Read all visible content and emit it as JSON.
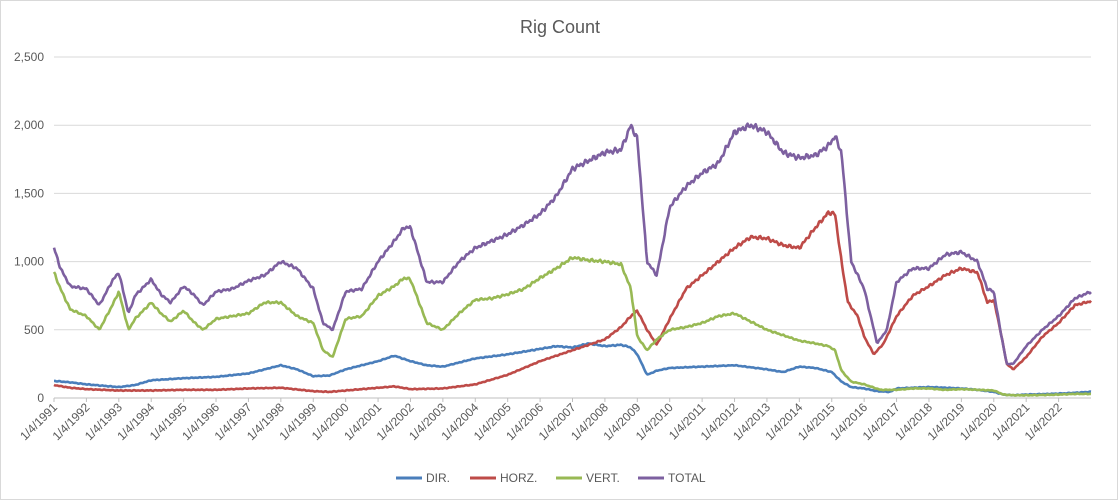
{
  "chart_data": {
    "type": "line",
    "title": "Rig Count",
    "xlabel": "",
    "ylabel": "",
    "ylim": [
      0,
      2500
    ],
    "yticks": [
      "0",
      "500",
      "1,000",
      "1,500",
      "2,000",
      "2,500"
    ],
    "xlim": [
      "1991-01-04",
      "2023-01-04"
    ],
    "xticks": [
      "1/4/1991",
      "1/4/1992",
      "1/4/1993",
      "1/4/1994",
      "1/4/1995",
      "1/4/1996",
      "1/4/1997",
      "1/4/1998",
      "1/4/1999",
      "1/4/2000",
      "1/4/2001",
      "1/4/2002",
      "1/4/2003",
      "1/4/2004",
      "1/4/2005",
      "1/4/2006",
      "1/4/2007",
      "1/4/2008",
      "1/4/2009",
      "1/4/2010",
      "1/4/2011",
      "1/4/2012",
      "1/4/2013",
      "1/4/2014",
      "1/4/2015",
      "1/4/2016",
      "1/4/2017",
      "1/4/2018",
      "1/4/2019",
      "1/4/2020",
      "1/4/2021",
      "1/4/2022"
    ],
    "grid": "horizontal",
    "legend_position": "bottom",
    "series": [
      {
        "name": "DIR.",
        "color": "#4a7ebb",
        "x": [
          1991.0,
          1991.5,
          1992.0,
          1992.5,
          1993.0,
          1993.5,
          1994.0,
          1995.0,
          1996.0,
          1997.0,
          1997.5,
          1998.0,
          1998.5,
          1999.0,
          1999.5,
          2000.0,
          2001.0,
          2001.5,
          2002.0,
          2002.5,
          2003.0,
          2003.5,
          2004.0,
          2005.0,
          2006.0,
          2006.5,
          2007.0,
          2007.5,
          2008.0,
          2008.5,
          2008.8,
          2009.0,
          2009.3,
          2009.6,
          2010.0,
          2011.0,
          2012.0,
          2012.5,
          2013.0,
          2013.5,
          2014.0,
          2014.5,
          2015.0,
          2015.3,
          2015.6,
          2016.0,
          2016.4,
          2016.8,
          2017.0,
          2017.5,
          2018.0,
          2018.5,
          2019.0,
          2019.5,
          2020.0,
          2020.3,
          2020.6,
          2021.0,
          2021.5,
          2022.0,
          2022.5,
          2023.0
        ],
        "values": [
          125,
          115,
          100,
          90,
          80,
          95,
          130,
          145,
          155,
          180,
          210,
          240,
          210,
          160,
          165,
          210,
          270,
          310,
          270,
          240,
          230,
          260,
          290,
          320,
          360,
          380,
          370,
          400,
          380,
          390,
          370,
          320,
          170,
          200,
          220,
          230,
          240,
          225,
          210,
          190,
          230,
          220,
          190,
          120,
          80,
          70,
          50,
          45,
          70,
          75,
          80,
          75,
          70,
          60,
          45,
          25,
          20,
          25,
          28,
          32,
          38,
          45
        ]
      },
      {
        "name": "HORZ.",
        "color": "#be4b48",
        "x": [
          1991.0,
          1991.5,
          1992.0,
          1993.0,
          1994.0,
          1995.0,
          1996.0,
          1997.0,
          1998.0,
          1999.0,
          1999.5,
          2000.0,
          2001.0,
          2001.5,
          2002.0,
          2003.0,
          2004.0,
          2005.0,
          2006.0,
          2007.0,
          2008.0,
          2008.5,
          2008.8,
          2009.0,
          2009.3,
          2009.6,
          2010.0,
          2010.5,
          2011.0,
          2011.5,
          2012.0,
          2012.5,
          2013.0,
          2013.5,
          2014.0,
          2014.5,
          2014.9,
          2015.1,
          2015.3,
          2015.5,
          2015.8,
          2016.0,
          2016.3,
          2016.6,
          2017.0,
          2017.5,
          2018.0,
          2018.5,
          2019.0,
          2019.5,
          2019.8,
          2020.0,
          2020.2,
          2020.4,
          2020.6,
          2021.0,
          2021.5,
          2022.0,
          2022.5,
          2023.0
        ],
        "values": [
          95,
          75,
          65,
          55,
          55,
          60,
          60,
          70,
          75,
          50,
          45,
          55,
          75,
          85,
          65,
          70,
          100,
          170,
          270,
          350,
          430,
          520,
          600,
          640,
          500,
          390,
          580,
          800,
          900,
          1000,
          1100,
          1180,
          1170,
          1120,
          1100,
          1250,
          1360,
          1350,
          1000,
          700,
          600,
          450,
          320,
          400,
          600,
          750,
          820,
          900,
          950,
          920,
          700,
          720,
          500,
          250,
          210,
          300,
          450,
          550,
          680,
          710
        ]
      },
      {
        "name": "VERT.",
        "color": "#98b954",
        "x": [
          1991.0,
          1991.2,
          1991.5,
          1992.0,
          1992.4,
          1992.8,
          1993.0,
          1993.3,
          1993.5,
          1994.0,
          1994.3,
          1994.6,
          1995.0,
          1995.3,
          1995.6,
          1996.0,
          1996.5,
          1997.0,
          1997.5,
          1998.0,
          1998.5,
          1999.0,
          1999.3,
          1999.6,
          2000.0,
          2000.5,
          2001.0,
          2001.5,
          2001.8,
          2002.0,
          2002.5,
          2003.0,
          2003.5,
          2004.0,
          2004.5,
          2005.0,
          2005.5,
          2006.0,
          2006.5,
          2007.0,
          2007.5,
          2008.0,
          2008.5,
          2008.8,
          2009.0,
          2009.3,
          2009.6,
          2010.0,
          2010.5,
          2011.0,
          2011.5,
          2012.0,
          2012.5,
          2013.0,
          2013.5,
          2014.0,
          2014.5,
          2014.9,
          2015.1,
          2015.3,
          2015.6,
          2016.0,
          2016.5,
          2017.0,
          2017.5,
          2018.0,
          2018.5,
          2019.0,
          2019.5,
          2020.0,
          2020.3,
          2020.6,
          2021.0,
          2021.5,
          2022.0,
          2022.5,
          2023.0
        ],
        "values": [
          920,
          800,
          650,
          600,
          500,
          680,
          780,
          500,
          580,
          700,
          620,
          560,
          640,
          560,
          500,
          580,
          600,
          620,
          700,
          700,
          600,
          550,
          350,
          300,
          580,
          600,
          750,
          820,
          880,
          870,
          550,
          500,
          620,
          720,
          730,
          760,
          800,
          880,
          950,
          1030,
          1010,
          1000,
          980,
          800,
          450,
          350,
          430,
          500,
          520,
          550,
          600,
          620,
          560,
          500,
          460,
          420,
          400,
          380,
          350,
          200,
          120,
          100,
          60,
          60,
          70,
          70,
          60,
          65,
          60,
          55,
          25,
          20,
          20,
          22,
          25,
          30,
          30
        ]
      },
      {
        "name": "TOTAL",
        "color": "#7d60a0",
        "x": [
          1991.0,
          1991.2,
          1991.5,
          1992.0,
          1992.4,
          1992.8,
          1993.0,
          1993.3,
          1993.5,
          1994.0,
          1994.3,
          1994.6,
          1995.0,
          1995.3,
          1995.6,
          1996.0,
          1996.5,
          1997.0,
          1997.5,
          1998.0,
          1998.5,
          1999.0,
          1999.3,
          1999.6,
          2000.0,
          2000.5,
          2001.0,
          2001.5,
          2001.8,
          2002.0,
          2002.5,
          2003.0,
          2003.5,
          2004.0,
          2004.5,
          2005.0,
          2005.5,
          2006.0,
          2006.5,
          2007.0,
          2007.5,
          2008.0,
          2008.5,
          2008.8,
          2009.0,
          2009.3,
          2009.6,
          2010.0,
          2010.5,
          2011.0,
          2011.5,
          2012.0,
          2012.5,
          2013.0,
          2013.5,
          2014.0,
          2014.5,
          2014.9,
          2015.1,
          2015.3,
          2015.6,
          2016.0,
          2016.4,
          2016.7,
          2017.0,
          2017.5,
          2018.0,
          2018.5,
          2019.0,
          2019.5,
          2019.8,
          2020.0,
          2020.2,
          2020.4,
          2020.6,
          2021.0,
          2021.5,
          2022.0,
          2022.5,
          2023.0
        ],
        "values": [
          1100,
          950,
          820,
          800,
          680,
          860,
          920,
          620,
          750,
          870,
          760,
          700,
          820,
          760,
          680,
          780,
          800,
          860,
          900,
          1000,
          950,
          800,
          550,
          500,
          780,
          800,
          1000,
          1150,
          1250,
          1250,
          850,
          850,
          1000,
          1100,
          1150,
          1200,
          1270,
          1350,
          1480,
          1680,
          1740,
          1800,
          1820,
          2000,
          1900,
          1000,
          900,
          1400,
          1550,
          1650,
          1720,
          1950,
          2000,
          1950,
          1800,
          1760,
          1780,
          1850,
          1920,
          1800,
          1000,
          800,
          400,
          500,
          850,
          950,
          950,
          1050,
          1070,
          1000,
          800,
          780,
          500,
          250,
          250,
          380,
          500,
          600,
          730,
          780
        ]
      }
    ]
  }
}
